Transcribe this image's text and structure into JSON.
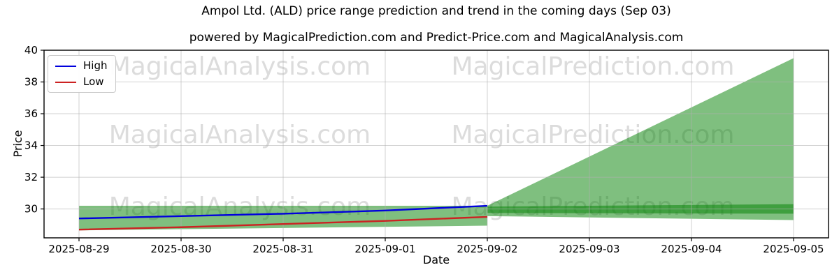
{
  "header": {
    "title": "Ampol Ltd. (ALD) price range prediction and trend in the coming days (Sep 03)",
    "subtitle": "powered by MagicalPrediction.com and Predict-Price.com and MagicalAnalysis.com"
  },
  "watermark": {
    "left_text": "MagicalAnalysis.com",
    "right_text": "MagicalPrediction.com"
  },
  "chart_data": {
    "type": "area",
    "title": "Ampol Ltd. (ALD) price range prediction and trend in the coming days (Sep 03)",
    "xlabel": "Date",
    "ylabel": "Price",
    "x_dates": [
      "2025-08-29",
      "2025-08-30",
      "2025-08-31",
      "2025-09-01",
      "2025-09-02",
      "2025-09-03",
      "2025-09-04",
      "2025-09-05"
    ],
    "ylim": [
      28.18,
      40
    ],
    "yticks": [
      30,
      32,
      34,
      36,
      38,
      40
    ],
    "grid": true,
    "legend_position": "upper-left",
    "series": [
      {
        "name": "High",
        "color": "#0000dd",
        "x_index": [
          0,
          1,
          2,
          3,
          4
        ],
        "values": [
          29.4,
          29.55,
          29.7,
          29.9,
          30.2
        ]
      },
      {
        "name": "Low",
        "color": "#cc2222",
        "x_index": [
          0,
          1,
          2,
          3,
          4
        ],
        "values": [
          28.7,
          28.85,
          29.05,
          29.25,
          29.5
        ]
      }
    ],
    "bands": [
      {
        "name": "history-range",
        "color": "#008000",
        "opacity": 0.5,
        "x_index": [
          0,
          4
        ],
        "top": [
          30.2,
          30.2
        ],
        "bottom": [
          28.65,
          28.95
        ]
      },
      {
        "name": "forecast-fan",
        "color": "#008000",
        "opacity": 0.5,
        "x_index": [
          4,
          7
        ],
        "top": [
          30.2,
          39.5
        ],
        "bottom": [
          29.55,
          29.3
        ]
      },
      {
        "name": "forecast-core",
        "color": "#008000",
        "opacity": 0.5,
        "x_index": [
          4,
          7
        ],
        "top": [
          30.15,
          30.3
        ],
        "bottom": [
          29.75,
          29.7
        ]
      }
    ]
  }
}
